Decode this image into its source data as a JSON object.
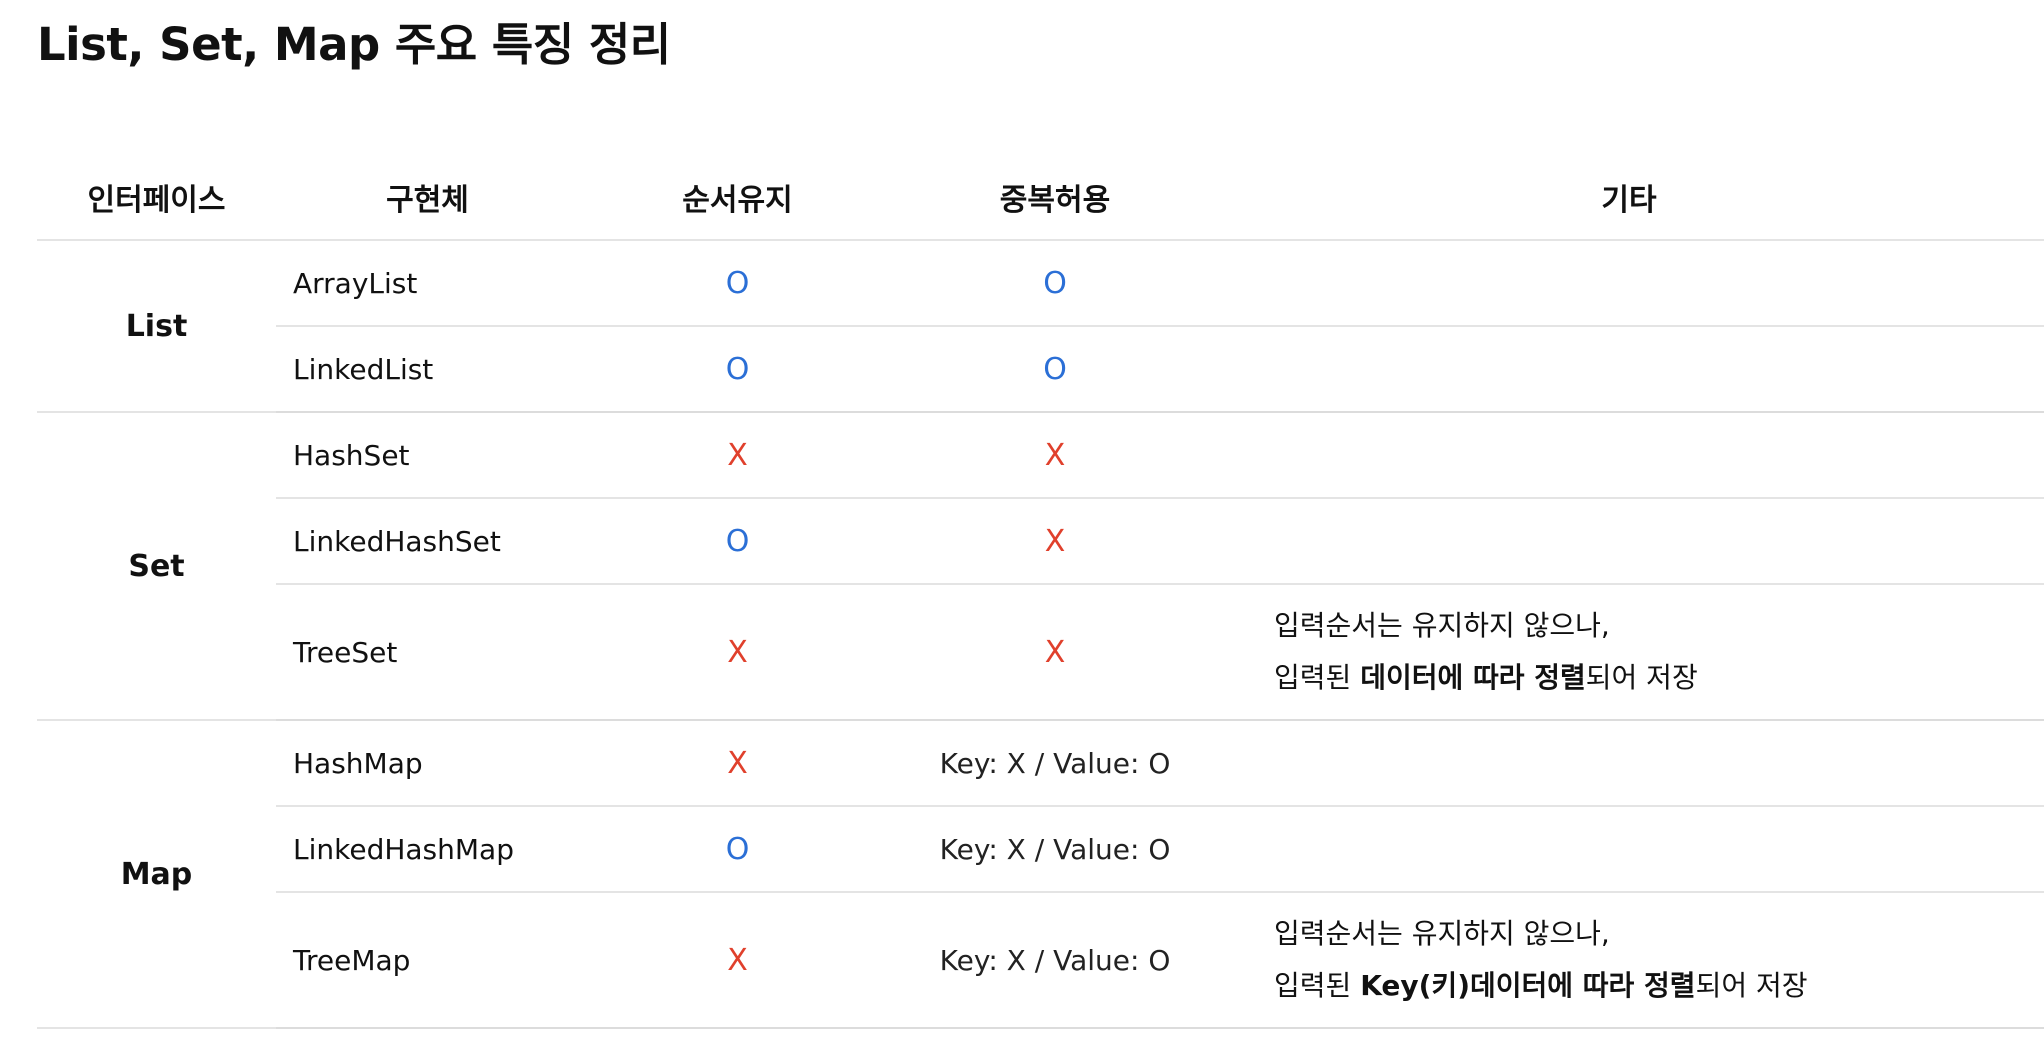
{
  "title": "List, Set, Map 주요 특징 정리",
  "headers": {
    "interface": "인터페이스",
    "impl": "구현체",
    "order": "순서유지",
    "dup": "중복허용",
    "etc": "기타"
  },
  "colors": {
    "o_mark": "#2b6fd6",
    "x_mark": "#e0402c"
  },
  "groups": {
    "list": "List",
    "set": "Set",
    "map": "Map"
  },
  "rows": [
    {
      "impl": "ArrayList",
      "order": "O",
      "dup": "O"
    },
    {
      "impl": "LinkedList",
      "order": "O",
      "dup": "O"
    },
    {
      "impl": "HashSet",
      "order": "X",
      "dup": "X"
    },
    {
      "impl": "LinkedHashSet",
      "order": "O",
      "dup": "X"
    },
    {
      "impl": "TreeSet",
      "order": "X",
      "dup": "X",
      "note": {
        "line1": "입력순서는 유지하지 않으나,",
        "prefix": "입력된 ",
        "bold": "데이터에 따라 정렬",
        "suffix": "되어 저장"
      }
    },
    {
      "impl": "HashMap",
      "order": "X",
      "dup": "Key: X / Value: O"
    },
    {
      "impl": "LinkedHashMap",
      "order": "O",
      "dup": "Key: X / Value: O"
    },
    {
      "impl": "TreeMap",
      "order": "X",
      "dup": "Key: X / Value: O",
      "note": {
        "line1": "입력순서는 유지하지 않으나,",
        "prefix": "입력된 ",
        "bold": "Key(키)데이터에 따라 정렬",
        "suffix": "되어 저장"
      }
    }
  ]
}
